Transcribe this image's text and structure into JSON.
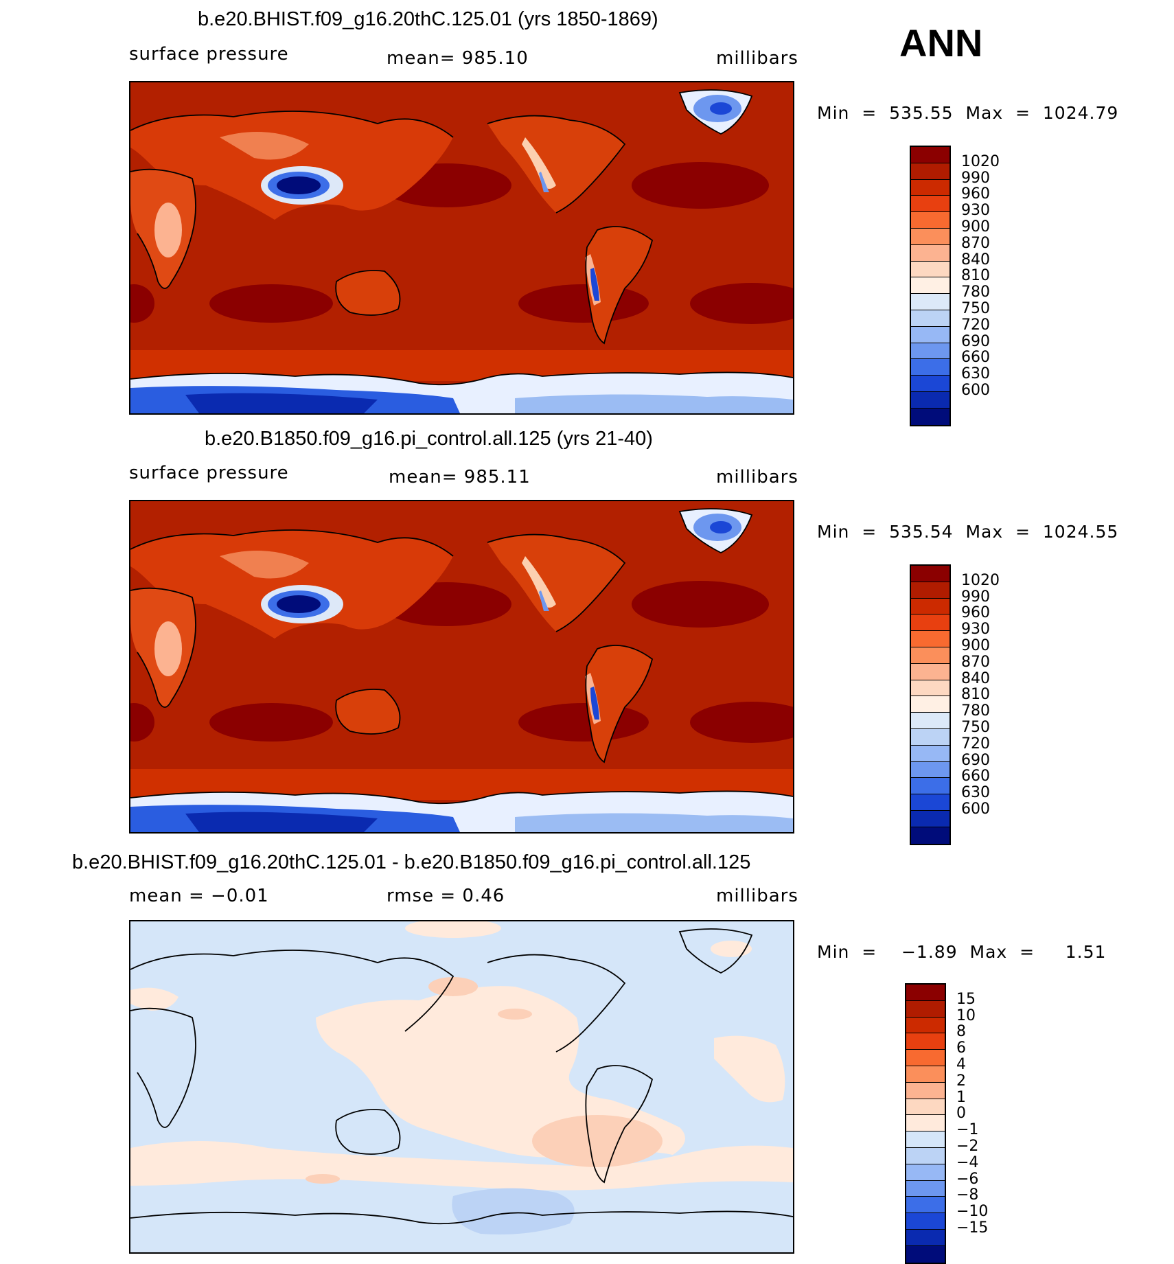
{
  "season": "ANN",
  "panels": [
    {
      "title": "b.e20.BHIST.f09_g16.20thC.125.01 (yrs 1850-1869)",
      "left_label": "surface pressure",
      "center_label": "mean=  985.10",
      "right_label": "millibars",
      "minmax": "Min  =  535.55  Max  =  1024.79",
      "kind": "abs"
    },
    {
      "title": "b.e20.B1850.f09_g16.pi_control.all.125 (yrs 21-40)",
      "left_label": "surface pressure",
      "center_label": "mean=  985.11",
      "right_label": "millibars",
      "minmax": "Min  =  535.54  Max  =  1024.55",
      "kind": "abs"
    },
    {
      "title": "b.e20.BHIST.f09_g16.20thC.125.01 - b.e20.B1850.f09_g16.pi_control.all.125",
      "left_label": "mean  =    −0.01",
      "center_label": "rmse  =     0.46",
      "right_label": "millibars",
      "minmax": "Min  =    −1.89  Max  =     1.51",
      "kind": "diff"
    }
  ],
  "colorbars": {
    "abs": {
      "labels": [
        "1020",
        "990",
        "960",
        "930",
        "900",
        "870",
        "840",
        "810",
        "780",
        "750",
        "720",
        "690",
        "660",
        "630",
        "600"
      ],
      "colors": [
        "#8b0000",
        "#b01c00",
        "#cc2a00",
        "#e84010",
        "#f86a30",
        "#fb8f5b",
        "#fcb391",
        "#fdd8c1",
        "#fff0e4",
        "#dce9f8",
        "#bcd3f5",
        "#97b8f5",
        "#6d97ef",
        "#3c6ee8",
        "#1b47d6",
        "#0a2ab0",
        "#000c7a"
      ]
    },
    "diff": {
      "labels": [
        "15",
        "10",
        "8",
        "6",
        "4",
        "2",
        "1",
        "0",
        "−1",
        "−2",
        "−4",
        "−6",
        "−8",
        "−10",
        "−15"
      ],
      "colors": [
        "#8b0000",
        "#b01c00",
        "#cc2a00",
        "#e84010",
        "#f86a30",
        "#fb8f5b",
        "#fcb391",
        "#fdd8c1",
        "#ffeadc",
        "#d5e6f9",
        "#bcd3f5",
        "#97b8f5",
        "#6d97ef",
        "#3c6ee8",
        "#1b47d6",
        "#0a2ab0",
        "#000c7a"
      ]
    }
  }
}
